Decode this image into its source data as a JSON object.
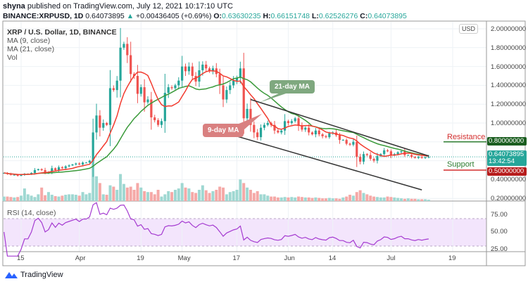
{
  "header": {
    "publisher": "shyna",
    "published_text": "published on TradingView.com, July 12, 2021 10:17:10 UTC",
    "symbol": "BINANCE:XRPUSD, 1D",
    "last": "0.64073895",
    "change": "+0.00436405 (+0.69%)",
    "o_label": "O:",
    "o": "0.63630235",
    "h_label": "H:",
    "h": "0.66151748",
    "l_label": "L:",
    "l": "0.62526276",
    "c_label": "C:",
    "c": "0.64073895"
  },
  "legend": {
    "title": "XRP / U.S. Dollar, 1D, BINANCE",
    "ma9": "MA (9, close)",
    "ma21": "MA (21, close)",
    "vol": "Vol",
    "rsi": "RSI (14, close)"
  },
  "annotations": {
    "ma21_label": "21-day MA",
    "ma9_label": "9-day MA",
    "resistance": "Resistance",
    "support": "Support"
  },
  "price_axis": {
    "currency": "USD",
    "ticks": [
      "2.00000000",
      "1.80000000",
      "1.60000000",
      "1.40000000",
      "1.20000000",
      "1.00000000",
      "0.40000000",
      "0.20000000"
    ],
    "tag_resistance": "0.80000000",
    "tag_last": "0.64073895",
    "tag_countdown": "13:42:54",
    "tag_support": "0.50000000"
  },
  "rsi_axis": {
    "ticks": [
      "75.00",
      "50.00",
      "25.00"
    ]
  },
  "time_axis": {
    "ticks": [
      "15",
      "Apr",
      "19",
      "May",
      "17",
      "Jun",
      "14",
      "Jul",
      "19"
    ]
  },
  "brand": {
    "name": "TradingView"
  },
  "colors": {
    "up": "#26a69a",
    "down": "#ef5350",
    "ma9": "#f23b2f",
    "ma21": "#3a9a3a",
    "rsi": "#a53bd1",
    "resistance_tag": "#1b5e20",
    "support_tag": "#b71c1c",
    "last_tag": "#26a69a"
  },
  "chart_data": {
    "type": "candlestick",
    "start_date": "2021-03-10",
    "end_date": "2021-07-12",
    "interval": "1D",
    "ylim": [
      0.2,
      2.0
    ],
    "closes": [
      0.47,
      0.46,
      0.45,
      0.45,
      0.44,
      0.45,
      0.46,
      0.46,
      0.47,
      0.5,
      0.51,
      0.5,
      0.47,
      0.48,
      0.52,
      0.5,
      0.53,
      0.52,
      0.54,
      0.55,
      0.56,
      0.57,
      0.56,
      0.58,
      0.58,
      0.6,
      0.9,
      1.08,
      0.95,
      1.0,
      0.98,
      1.37,
      1.35,
      1.45,
      1.8,
      1.84,
      1.72,
      1.52,
      1.5,
      1.31,
      1.38,
      1.22,
      1.25,
      1.06,
      1.03,
      0.98,
      1.02,
      1.32,
      1.38,
      1.37,
      1.4,
      1.45,
      1.6,
      1.55,
      1.6,
      1.5,
      1.44,
      1.56,
      1.62,
      1.58,
      1.55,
      1.58,
      1.52,
      1.4,
      1.25,
      1.35,
      1.4,
      1.45,
      1.48,
      1.58,
      1.05,
      1.15,
      0.98,
      0.9,
      0.85,
      0.95,
      0.98,
      1.0,
      0.98,
      0.92,
      0.9,
      0.92,
      1.02,
      1.0,
      1.02,
      1.05,
      0.97,
      0.93,
      0.95,
      0.9,
      0.88,
      0.92,
      0.88,
      0.86,
      0.85,
      0.89,
      0.9,
      0.87,
      0.82,
      0.82,
      0.78,
      0.77,
      0.8,
      0.64,
      0.59,
      0.67,
      0.66,
      0.62,
      0.6,
      0.65,
      0.67,
      0.71,
      0.7,
      0.66,
      0.67,
      0.69,
      0.7,
      0.66,
      0.66,
      0.64,
      0.63,
      0.64,
      0.63,
      0.6363,
      0.6407
    ],
    "last_candle": {
      "open": 0.63630235,
      "high": 0.66151748,
      "low": 0.62526276,
      "close": 0.64073895
    },
    "volume_relative": [
      10,
      10,
      9,
      8,
      9,
      12,
      28,
      15,
      12,
      9,
      15,
      30,
      13,
      20,
      14,
      11,
      10,
      12,
      14,
      15,
      15,
      14,
      12,
      20,
      15,
      18,
      90,
      55,
      40,
      15,
      14,
      35,
      32,
      25,
      60,
      38,
      30,
      32,
      25,
      40,
      30,
      22,
      20,
      20,
      15,
      25,
      10,
      15,
      22,
      20,
      25,
      28,
      40,
      30,
      28,
      20,
      18,
      25,
      35,
      24,
      18,
      22,
      25,
      32,
      30,
      15,
      20,
      22,
      25,
      48,
      40,
      30,
      25,
      18,
      22,
      15,
      15,
      12,
      10,
      10,
      8,
      8,
      9,
      8,
      9,
      8,
      10,
      9,
      8,
      8,
      7,
      8,
      7,
      6,
      6,
      7,
      6,
      6,
      5,
      8,
      10,
      14,
      12,
      20,
      24,
      18,
      15,
      12,
      10,
      9,
      8,
      8,
      10,
      9,
      8,
      7,
      6,
      5,
      6,
      5,
      5,
      4,
      4,
      4,
      3
    ],
    "indicators": [
      "MA 9",
      "MA 21",
      "Volume",
      "RSI 14"
    ],
    "rsi_bands": [
      30,
      70
    ],
    "horizontal_levels": {
      "resistance": 0.8,
      "support": 0.5
    },
    "channel": {
      "upper": [
        [
          "2021-05-21",
          1.25
        ],
        [
          "2021-07-12",
          0.65
        ]
      ],
      "lower": [
        [
          "2021-05-16",
          0.87
        ],
        [
          "2021-07-10",
          0.29
        ]
      ]
    },
    "grid": true
  }
}
